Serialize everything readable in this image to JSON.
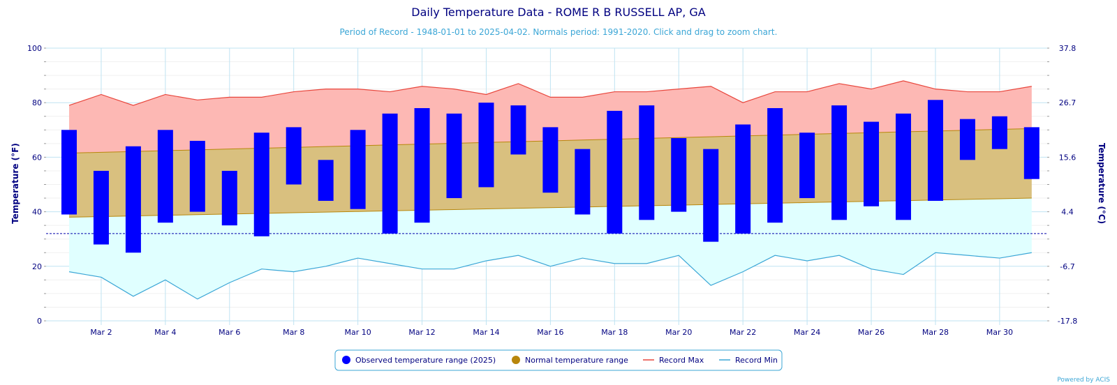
{
  "chart_data": {
    "type": "bar",
    "title": "Daily Temperature Data - ROME R B RUSSELL AP, GA",
    "subtitle": "Period of Record - 1948-01-01 to 2025-04-02. Normals period: 1991-2020. Click and drag to zoom chart.",
    "ylabel": "Temperature (°F)",
    "ylabel_right": "Temperature (°C)",
    "ylim": [
      0,
      100
    ],
    "yticks": [
      0,
      20,
      40,
      60,
      80,
      100
    ],
    "yticks_right": [
      "-17.8",
      "-6.7",
      "4.4",
      "15.6",
      "26.7",
      "37.8"
    ],
    "freezing_line": 32,
    "x": [
      1,
      2,
      3,
      4,
      5,
      6,
      7,
      8,
      9,
      10,
      11,
      12,
      13,
      14,
      15,
      16,
      17,
      18,
      19,
      20,
      21,
      22,
      23,
      24,
      25,
      26,
      27,
      28,
      29,
      30,
      31
    ],
    "xticks": [
      "Mar 2",
      "Mar 4",
      "Mar 6",
      "Mar 8",
      "Mar 10",
      "Mar 12",
      "Mar 14",
      "Mar 16",
      "Mar 18",
      "Mar 20",
      "Mar 22",
      "Mar 24",
      "Mar 26",
      "Mar 28",
      "Mar 30"
    ],
    "xtick_days": [
      2,
      4,
      6,
      8,
      10,
      12,
      14,
      16,
      18,
      20,
      22,
      24,
      26,
      28,
      30
    ],
    "series": [
      {
        "name": "Observed temperature range (2025)",
        "color": "#0000ff",
        "low": [
          39,
          28,
          25,
          36,
          40,
          35,
          31,
          50,
          44,
          41,
          32,
          36,
          45,
          49,
          61,
          47,
          39,
          32,
          37,
          40,
          29,
          32,
          36,
          45,
          37,
          42,
          37,
          44,
          59,
          63,
          52
        ],
        "high": [
          70,
          55,
          64,
          70,
          66,
          55,
          69,
          71,
          59,
          70,
          76,
          78,
          76,
          80,
          79,
          71,
          63,
          77,
          79,
          67,
          63,
          72,
          78,
          69,
          79,
          73,
          76,
          81,
          74,
          75,
          71
        ]
      },
      {
        "name": "Normal temperature range",
        "color": "#b8860b",
        "low_start": 38,
        "low_end": 45,
        "high_start": 61.5,
        "high_end": 70.5
      },
      {
        "name": "Record Max",
        "color": "#e8463c",
        "values": [
          79,
          83,
          79,
          83,
          81,
          82,
          82,
          84,
          85,
          85,
          84,
          86,
          85,
          83,
          87,
          82,
          82,
          84,
          84,
          85,
          86,
          80,
          84,
          84,
          87,
          85,
          88,
          85,
          84,
          84,
          86
        ]
      },
      {
        "name": "Record Min",
        "color": "#3ba6d6",
        "values": [
          18,
          16,
          9,
          15,
          8,
          14,
          19,
          18,
          20,
          23,
          21,
          19,
          19,
          22,
          24,
          20,
          23,
          21,
          21,
          24,
          13,
          18,
          24,
          22,
          24,
          19,
          17,
          25,
          24,
          23,
          25
        ]
      }
    ],
    "legend_position": "bottom-center",
    "grid": true,
    "credit": "Powered by ACIS"
  }
}
